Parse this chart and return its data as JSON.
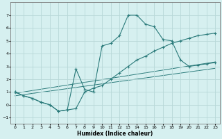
{
  "background_color": "#d6f0f0",
  "grid_color": "#b8d8d8",
  "line_color": "#2a7a7a",
  "xlabel": "Humidex (Indice chaleur)",
  "xlim": [
    -0.5,
    23.5
  ],
  "ylim": [
    -1.5,
    8.0
  ],
  "yticks": [
    -1,
    0,
    1,
    2,
    3,
    4,
    5,
    6,
    7
  ],
  "xticks": [
    0,
    1,
    2,
    3,
    4,
    5,
    6,
    7,
    8,
    9,
    10,
    11,
    12,
    13,
    14,
    15,
    16,
    17,
    18,
    19,
    20,
    21,
    22,
    23
  ],
  "peaked_x": [
    0,
    1,
    2,
    3,
    4,
    5,
    6,
    7,
    8,
    9,
    10,
    11,
    12,
    13,
    14,
    15,
    16,
    17,
    18,
    19,
    20,
    21,
    22,
    23
  ],
  "peaked_y": [
    1.0,
    0.7,
    0.5,
    0.2,
    0.0,
    -0.5,
    -0.4,
    2.8,
    1.2,
    1.0,
    4.6,
    4.8,
    5.4,
    7.0,
    7.0,
    6.3,
    6.1,
    5.1,
    5.0,
    3.5,
    3.0,
    3.1,
    3.2,
    3.3
  ],
  "wavy_x": [
    0,
    1,
    2,
    3,
    4,
    5,
    6,
    7,
    8,
    9,
    10,
    11,
    12,
    13,
    14,
    15,
    16,
    17,
    18,
    19,
    20,
    21,
    22,
    23
  ],
  "wavy_y": [
    1.0,
    0.7,
    0.5,
    0.2,
    0.0,
    -0.5,
    -0.4,
    -0.3,
    1.0,
    1.3,
    1.5,
    2.0,
    2.5,
    3.0,
    3.5,
    3.8,
    4.2,
    4.5,
    4.8,
    5.0,
    5.2,
    5.4,
    5.5,
    5.6
  ],
  "trend1_x": [
    0,
    23
  ],
  "trend1_y": [
    0.9,
    3.35
  ],
  "trend2_x": [
    0,
    23
  ],
  "trend2_y": [
    0.7,
    2.85
  ]
}
